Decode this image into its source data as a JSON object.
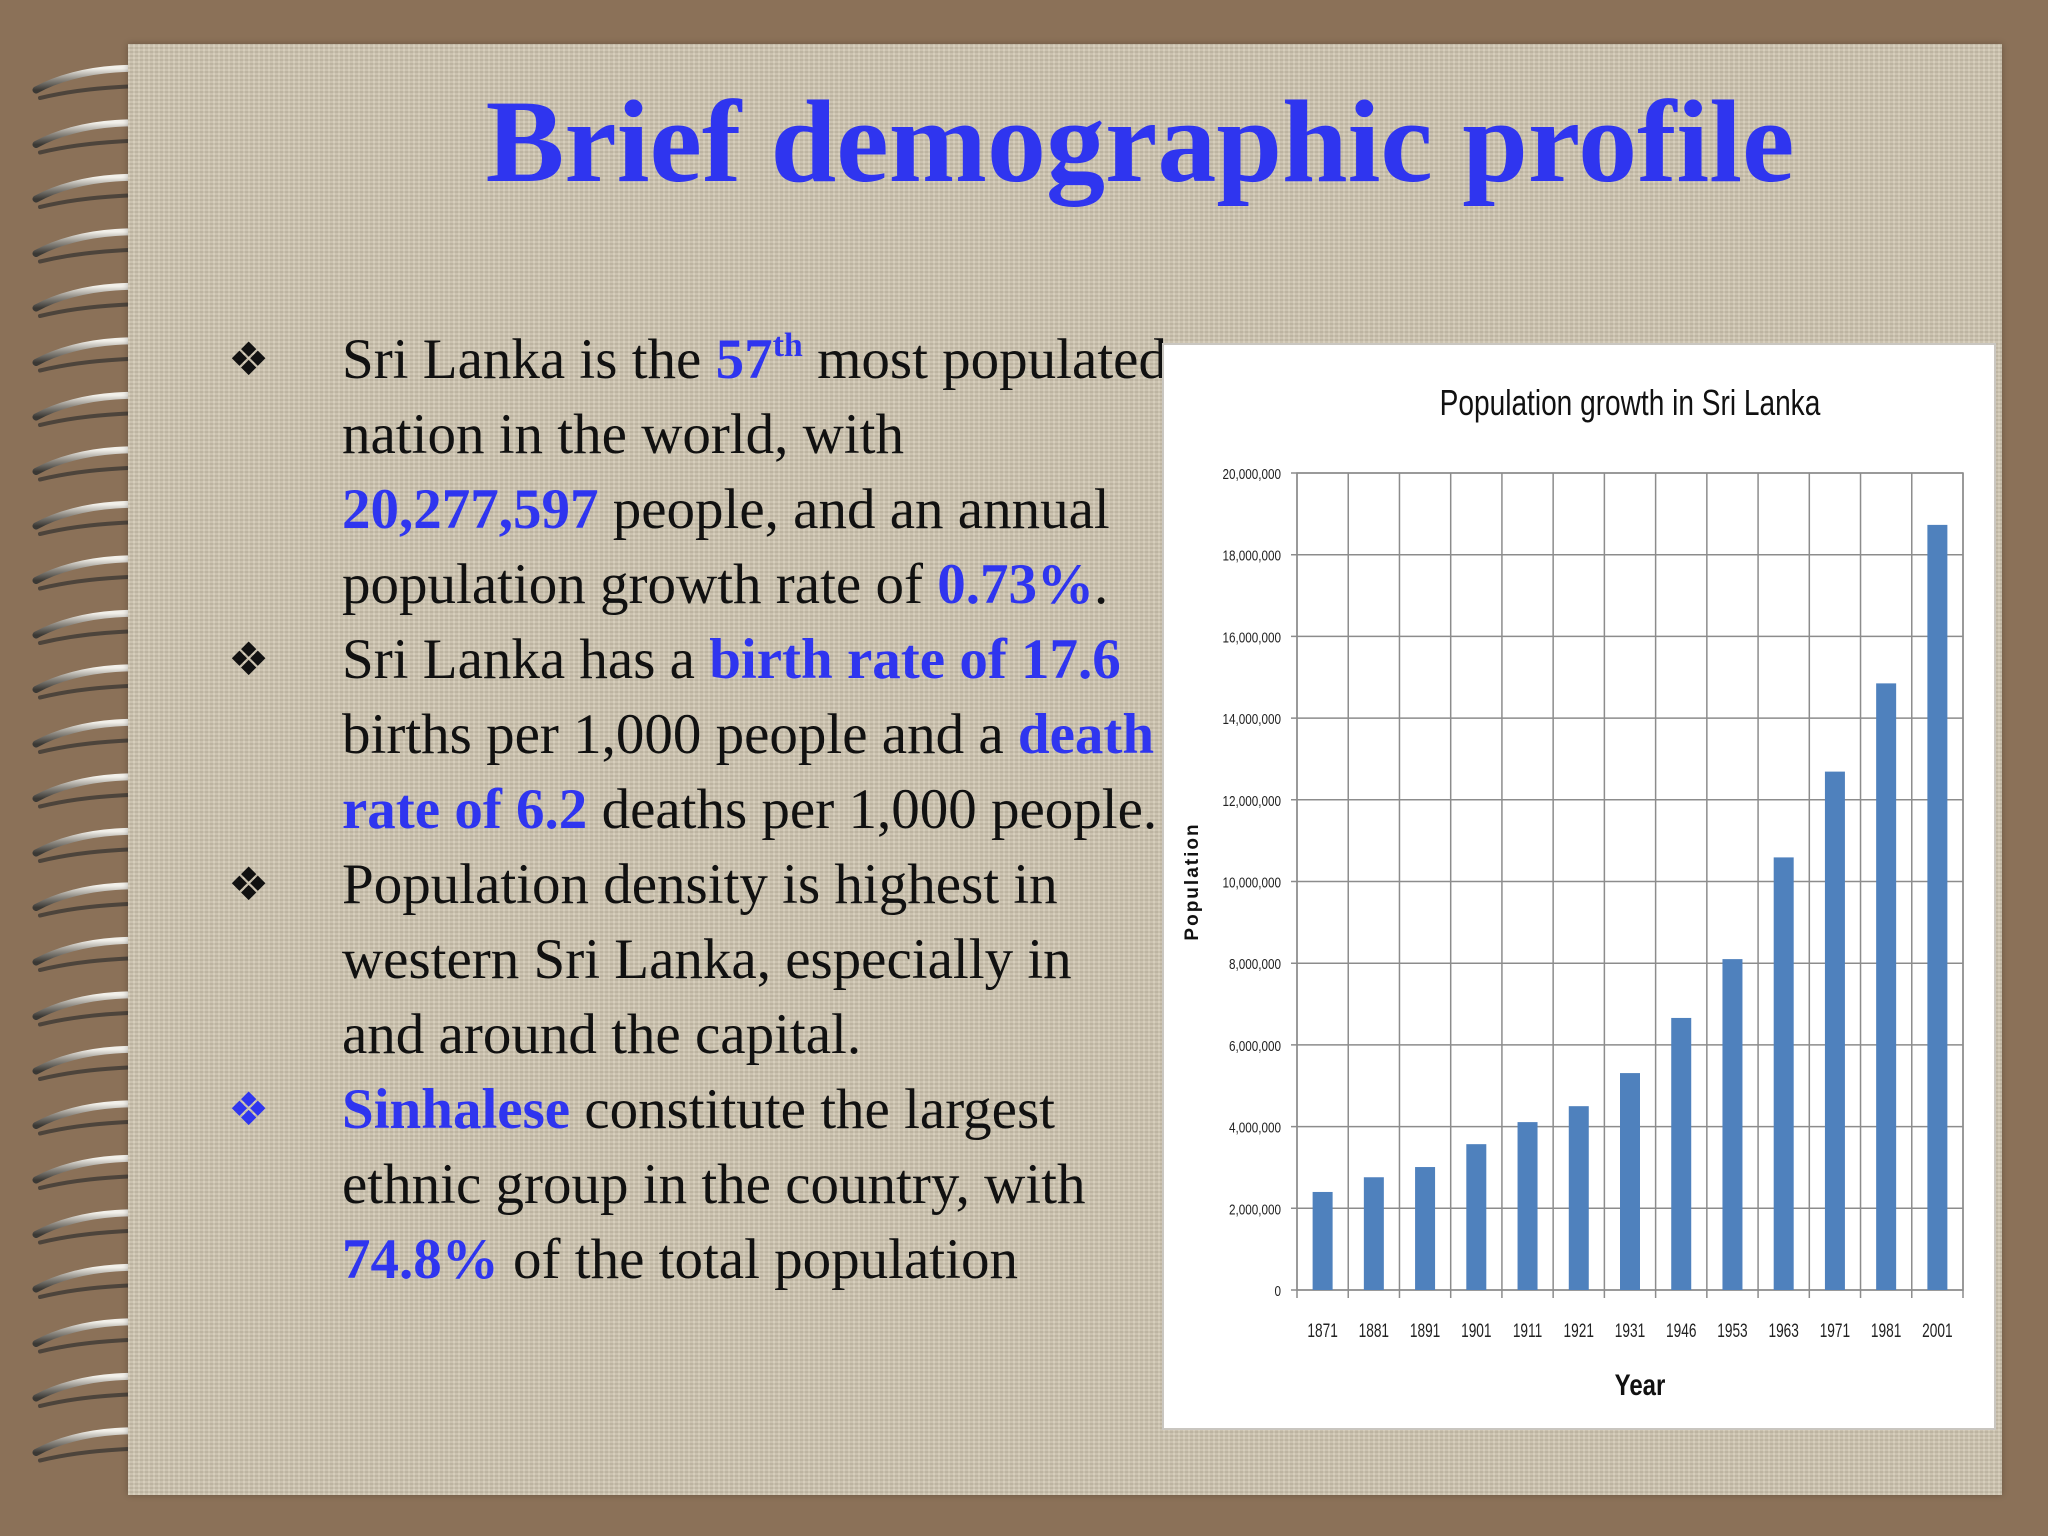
{
  "slide": {
    "title": "Brief demographic profile",
    "bullets": [
      {
        "segments": [
          {
            "text": "Sri Lanka is the ",
            "hl": false
          },
          {
            "text": "57",
            "hl": true
          },
          {
            "text": "th",
            "hl": true,
            "sup": true
          },
          {
            "text": " most populated nation in the world, with ",
            "hl": false
          },
          {
            "text": "20,277,597",
            "hl": true
          },
          {
            "text": " people, and an annual population growth rate of ",
            "hl": false
          },
          {
            "text": "0.73%",
            "hl": true
          },
          {
            "text": ".",
            "hl": false
          }
        ]
      },
      {
        "segments": [
          {
            "text": "Sri Lanka has a ",
            "hl": false
          },
          {
            "text": "birth rate of 17.6",
            "hl": true
          },
          {
            "text": " births per 1,000 people and a ",
            "hl": false
          },
          {
            "text": "death rate of 6.2",
            "hl": true
          },
          {
            "text": " deaths per 1,000 people.",
            "hl": false
          }
        ]
      },
      {
        "segments": [
          {
            "text": "Population density is highest in western Sri Lanka, especially in and around the capital.",
            "hl": false
          }
        ]
      },
      {
        "mark_blue": true,
        "segments": [
          {
            "text": "Sinhalese",
            "hl": true
          },
          {
            "text": " constitute the largest ethnic group in the country, with ",
            "hl": false
          },
          {
            "text": "74.8%",
            "hl": true
          },
          {
            "text": " of the total population",
            "hl": false
          }
        ]
      }
    ],
    "bullet_symbol": "❖"
  },
  "chart_data": {
    "type": "bar",
    "title": "Population growth in Sri Lanka",
    "xlabel": "Year",
    "ylabel": "Population",
    "categories": [
      "1871",
      "1881",
      "1891",
      "1901",
      "1911",
      "1921",
      "1931",
      "1946",
      "1953",
      "1963",
      "1971",
      "1981",
      "2001"
    ],
    "values": [
      2400000,
      2760000,
      3010000,
      3570000,
      4110000,
      4500000,
      5310000,
      6660000,
      8100000,
      10590000,
      12690000,
      14850000,
      18730000
    ],
    "ylim": [
      0,
      20000000
    ],
    "yticks": [
      "0",
      "2,000,000",
      "4,000,000",
      "6,000,000",
      "8,000,000",
      "10,000,000",
      "12,000,000",
      "14,000,000",
      "16,000,000",
      "18,000,000",
      "20,000,000"
    ],
    "grid": true,
    "bar_color": "#4f81bd"
  },
  "colors": {
    "background": "#8b7158",
    "paper": "#d2c8b3",
    "accent": "#2f35ef",
    "text": "#111111"
  }
}
